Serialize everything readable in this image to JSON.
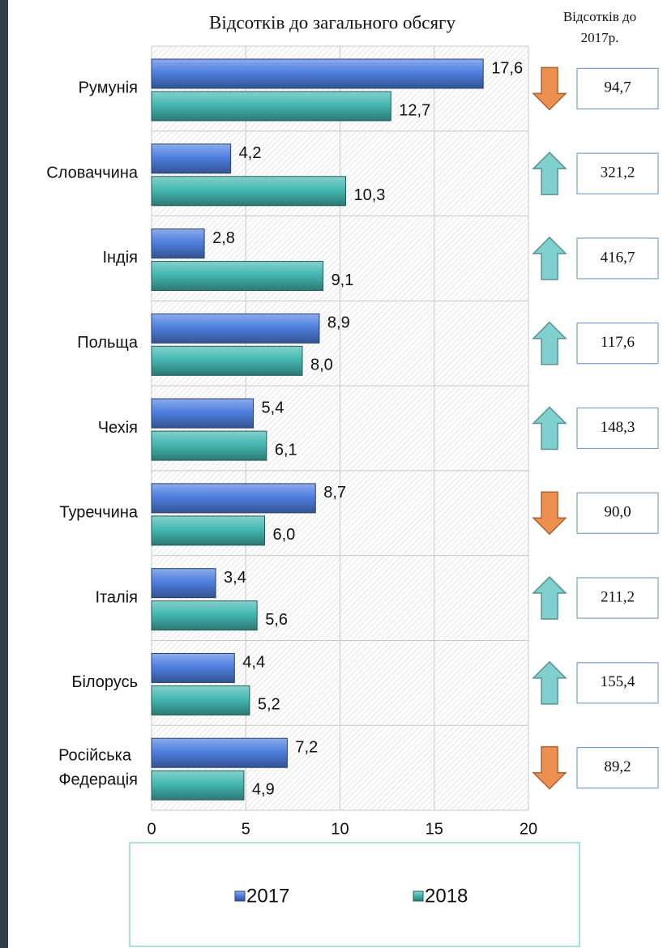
{
  "chart_data": {
    "type": "bar",
    "orientation": "horizontal",
    "title": "Відсотків до загального обсягу",
    "categories": [
      "Румунія",
      "Словаччина",
      "Індія",
      "Польща",
      "Чехія",
      "Туреччина",
      "Італія",
      "Білорусь",
      "Російська Федерація"
    ],
    "series": [
      {
        "name": "2017",
        "color": "#4f7fe0",
        "values": [
          17.6,
          4.2,
          2.8,
          8.9,
          5.4,
          8.7,
          3.4,
          4.4,
          7.2
        ],
        "value_labels": [
          "17,6",
          "4,2",
          "2,8",
          "8,9",
          "5,4",
          "8,7",
          "3,4",
          "4,4",
          "7,2"
        ]
      },
      {
        "name": "2018",
        "color": "#45b8b2",
        "values": [
          12.7,
          10.3,
          9.1,
          8.0,
          6.1,
          6.0,
          5.6,
          5.2,
          4.9
        ],
        "value_labels": [
          "12,7",
          "10,3",
          "9,1",
          "8,0",
          "6,1",
          "6,0",
          "5,6",
          "5,2",
          "4,9"
        ]
      }
    ],
    "xlim": [
      0,
      20
    ],
    "xticks": [
      0,
      5,
      10,
      15,
      20
    ],
    "grid": true,
    "legend": "bottom",
    "change": {
      "title": "Відсотків до 2017р.",
      "values": [
        94.7,
        321.2,
        416.7,
        117.6,
        148.3,
        90.0,
        211.2,
        155.4,
        89.2
      ],
      "value_labels": [
        "94,7",
        "321,2",
        "416,7",
        "117,6",
        "148,3",
        "90,0",
        "211,2",
        "155,4",
        "89,2"
      ],
      "up_color": "#7fd0cf",
      "down_color": "#ef8f4f"
    }
  }
}
